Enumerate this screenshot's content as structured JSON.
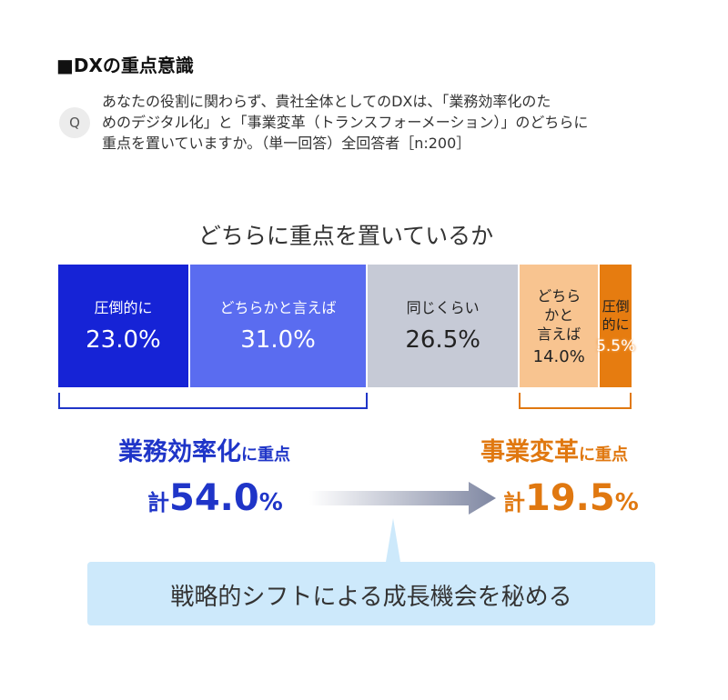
{
  "section_title": "■DXの重点意識",
  "question_badge": "Q",
  "question_lines": [
    "あなたの役割に関わらず、貴社全体としてのDXは、「業務効率化のた",
    "めのデジタル化」と「事業変革（トランスフォーメーション）」のどちらに",
    "重点を置いていますか。（単一回答）全回答者［n:200］"
  ],
  "chart_data": {
    "type": "bar",
    "orientation": "horizontal-stacked-100",
    "title": "どちらに重点を置いているか",
    "unit": "%",
    "categories": [
      "圧倒的に",
      "どちらかと言えば",
      "同じくらい",
      "どちらかと言えば",
      "圧倒的に"
    ],
    "values": [
      23.0,
      31.0,
      26.5,
      14.0,
      5.5
    ],
    "value_labels": [
      "23.0%",
      "31.0%",
      "26.5%",
      "14.0%",
      "5.5%"
    ],
    "display_labels": [
      "圧倒的に",
      "どちらかと言えば",
      "同じくらい",
      "どちら\nかと\n言えば",
      "圧倒\n的に"
    ],
    "colors": [
      "#1623d6",
      "#5a6cf0",
      "#c6cad6",
      "#f8c490",
      "#e67c10"
    ],
    "text_colors": [
      "#ffffff",
      "#ffffff",
      "#222222",
      "#222222",
      "#222222"
    ],
    "value_text_colors": [
      "#ffffff",
      "#ffffff",
      "#222222",
      "#222222",
      "#ffffff"
    ],
    "summary": {
      "left": {
        "label_main": "業務効率化",
        "label_sub": "に重点",
        "prefix": "計",
        "value": 54.0,
        "value_text": "54.0",
        "pct": "%",
        "color": "#1f35c8"
      },
      "right": {
        "label_main": "事業変革",
        "label_sub": "に重点",
        "prefix": "計",
        "value": 19.5,
        "value_text": "19.5",
        "pct": "%",
        "color": "#e07810"
      }
    }
  },
  "callout": {
    "text": "戦略的シフトによる成長機会を秘める",
    "color": "#cde9fb"
  }
}
